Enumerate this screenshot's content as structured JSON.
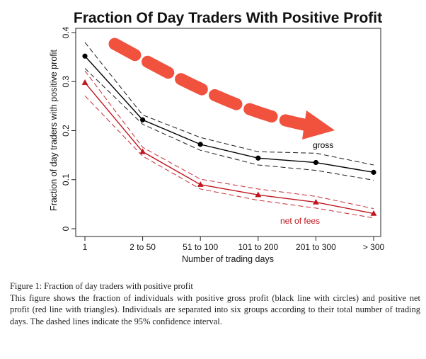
{
  "chart_data": {
    "type": "line",
    "title": "Fraction Of Day Traders With Positive Profit",
    "xlabel": "Number of trading days",
    "ylabel": "Fraction of day traders with positive profit",
    "categories": [
      "1",
      "2 to 50",
      "51 to 100",
      "101 to 200",
      "201 to 300",
      "> 300"
    ],
    "ylim": [
      0,
      0.4
    ],
    "yticks": [
      "0",
      "0.1",
      "0.2",
      "0.3",
      "0.4"
    ],
    "grid": false,
    "series": [
      {
        "name": "gross",
        "marker": "circle",
        "color": "#000000",
        "values": [
          0.352,
          0.222,
          0.172,
          0.144,
          0.135,
          0.115
        ],
        "ci_upper": [
          0.38,
          0.232,
          0.186,
          0.157,
          0.154,
          0.13
        ],
        "ci_lower": [
          0.327,
          0.213,
          0.16,
          0.13,
          0.119,
          0.099
        ]
      },
      {
        "name": "net of fees",
        "marker": "triangle",
        "color": "#c0161e",
        "values": [
          0.298,
          0.157,
          0.09,
          0.069,
          0.054,
          0.031
        ],
        "ci_upper": [
          0.322,
          0.166,
          0.101,
          0.081,
          0.066,
          0.041
        ],
        "ci_lower": [
          0.271,
          0.148,
          0.081,
          0.058,
          0.042,
          0.022
        ]
      }
    ],
    "annotation_arrow_color": "#f0523e"
  },
  "caption": {
    "title": "Figure 1: Fraction of day traders with positive profit",
    "body": "This figure shows the fraction of individuals with positive gross profit (black line with circles) and positive net profit (red line with triangles). Individuals are separated into six groups according to their total number of trading days. The dashed lines indicate the 95% confidence interval."
  }
}
